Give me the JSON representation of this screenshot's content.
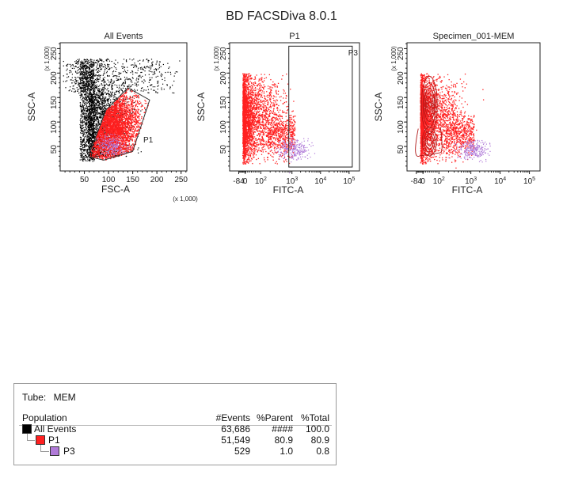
{
  "report": {
    "title": "BD FACSDiva 8.0.1"
  },
  "chart_data": [
    {
      "type": "scatter",
      "title": "All Events",
      "xlabel": "FSC-A",
      "ylabel": "SSC-A",
      "x_multiplier": "(x 1,000)",
      "y_multiplier": "(x 1,000)",
      "xlim": [
        0,
        262
      ],
      "ylim": [
        0,
        262
      ],
      "x_ticks": [
        "50",
        "100",
        "150",
        "200",
        "250"
      ],
      "y_ticks": [
        "50",
        "100",
        "150",
        "200",
        "250"
      ],
      "gate_label": "P1",
      "gate_polygon": [
        [
          58,
          30
        ],
        [
          95,
          125
        ],
        [
          140,
          170
        ],
        [
          185,
          145
        ],
        [
          150,
          40
        ],
        [
          90,
          22
        ]
      ],
      "series": [
        {
          "color": "#000000",
          "center": [
            72,
            170
          ],
          "spread": [
            25,
            70
          ]
        },
        {
          "color": "#ff2020",
          "center": [
            100,
            100
          ],
          "spread": [
            30,
            40
          ]
        },
        {
          "color": "#b07ad8",
          "center": [
            110,
            55
          ],
          "spread": [
            18,
            15
          ]
        }
      ]
    },
    {
      "type": "scatter",
      "title": "P1",
      "xlabel": "FITC-A",
      "ylabel": "SSC-A",
      "y_multiplier": "(x 1,000)",
      "x_scale": "biexponential",
      "x_ticks": [
        "-84",
        "0",
        "10^2",
        "10^3",
        "10^4",
        "10^5"
      ],
      "y_ticks": [
        "50",
        "100",
        "150",
        "200",
        "250"
      ],
      "ylim": [
        0,
        262
      ],
      "gate_label": "P3",
      "series": [
        {
          "color": "#ff2020",
          "center": [
            60,
            100
          ]
        },
        {
          "color": "#b07ad8",
          "center": [
            1500,
            60
          ]
        }
      ]
    },
    {
      "type": "contour",
      "title": "Specimen_001-MEM",
      "xlabel": "FITC-A",
      "ylabel": "SSC-A",
      "y_multiplier": "(x 1,000)",
      "x_scale": "biexponential",
      "x_ticks": [
        "-84",
        "0",
        "10^2",
        "10^3",
        "10^4",
        "10^5"
      ],
      "y_ticks": [
        "50",
        "100",
        "150",
        "200",
        "250"
      ],
      "ylim": [
        0,
        262
      ],
      "series": [
        {
          "color": "#ff2020",
          "center": [
            60,
            100
          ]
        },
        {
          "color": "#b07ad8",
          "center": [
            1500,
            60
          ]
        }
      ]
    }
  ],
  "stats": {
    "tube_label": "Tube:",
    "tube_value": "MEM",
    "headers": {
      "population": "Population",
      "events": "#Events",
      "parent": "%Parent",
      "total": "%Total"
    },
    "rows": [
      {
        "population": "All Events",
        "events": "63,686",
        "parent": "####",
        "total": "100.0",
        "color": "#000000"
      },
      {
        "population": "P1",
        "events": "51,549",
        "parent": "80.9",
        "total": "80.9",
        "color": "#ff2020"
      },
      {
        "population": "P3",
        "events": "529",
        "parent": "1.0",
        "total": "0.8",
        "color": "#b07ad8"
      }
    ]
  }
}
